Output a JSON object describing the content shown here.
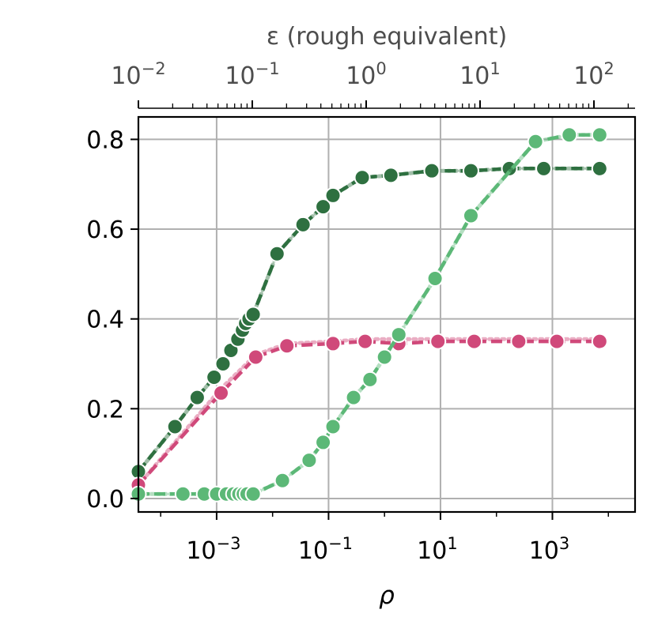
{
  "chart_data": {
    "type": "line",
    "xlabel": "ρ",
    "x_scale": "log",
    "xlim": [
      4e-05,
      30000
    ],
    "ylim": [
      -0.03,
      0.85
    ],
    "x_ticks": [
      0.001,
      0.1,
      10,
      1000
    ],
    "x_tick_labels": [
      {
        "base": "10",
        "exp": "−3"
      },
      {
        "base": "10",
        "exp": "−1"
      },
      {
        "base": "10",
        "exp": "1"
      },
      {
        "base": "10",
        "exp": "3"
      }
    ],
    "y_ticks": [
      0.0,
      0.2,
      0.4,
      0.6,
      0.8
    ],
    "y_tick_labels": [
      "0.0",
      "0.2",
      "0.4",
      "0.6",
      "0.8"
    ],
    "grid": true,
    "top_axis": {
      "label": "ε (rough equivalent)",
      "scale": "log",
      "ticks": [
        0.01,
        0.1,
        1,
        10,
        100
      ],
      "tick_labels": [
        {
          "base": "10",
          "exp": "−2"
        },
        {
          "base": "10",
          "exp": "−1"
        },
        {
          "base": "10",
          "exp": "0"
        },
        {
          "base": "10",
          "exp": "1"
        },
        {
          "base": "10",
          "exp": "2"
        }
      ]
    },
    "series": [
      {
        "color": "#2e7040",
        "x": [
          4e-05,
          0.00018,
          0.00045,
          0.0009,
          0.0013,
          0.0018,
          0.0024,
          0.0029,
          0.0033,
          0.0038,
          0.0045,
          0.012,
          0.035,
          0.08,
          0.12,
          0.4,
          1.3,
          7.0,
          35,
          170,
          700,
          7000
        ],
        "y": [
          0.06,
          0.16,
          0.225,
          0.27,
          0.3,
          0.33,
          0.355,
          0.375,
          0.39,
          0.4,
          0.41,
          0.545,
          0.61,
          0.65,
          0.675,
          0.715,
          0.72,
          0.73,
          0.73,
          0.735,
          0.735,
          0.735
        ]
      },
      {
        "color": "#d0497a",
        "x": [
          4e-05,
          0.0012,
          0.005,
          0.018,
          0.12,
          0.45,
          1.8,
          9.0,
          40,
          250,
          1200,
          7000
        ],
        "y": [
          0.03,
          0.235,
          0.315,
          0.34,
          0.345,
          0.35,
          0.345,
          0.35,
          0.35,
          0.35,
          0.35,
          0.35
        ],
        "faint_dotted_y": [
          0.03,
          0.245,
          0.32,
          0.345,
          0.35,
          0.355,
          0.355,
          0.355,
          0.355,
          0.355,
          0.355,
          0.355
        ]
      },
      {
        "color": "#5cb877",
        "x": [
          4e-05,
          0.00025,
          0.0006,
          0.001,
          0.0015,
          0.002,
          0.0025,
          0.003,
          0.0035,
          0.0045,
          0.015,
          0.045,
          0.08,
          0.12,
          0.28,
          0.55,
          1.0,
          1.8,
          8.0,
          35,
          500,
          2000,
          7000
        ],
        "y": [
          0.01,
          0.01,
          0.01,
          0.01,
          0.01,
          0.01,
          0.01,
          0.01,
          0.01,
          0.01,
          0.04,
          0.085,
          0.125,
          0.16,
          0.225,
          0.265,
          0.315,
          0.365,
          0.49,
          0.63,
          0.795,
          0.81,
          0.81
        ]
      }
    ]
  }
}
